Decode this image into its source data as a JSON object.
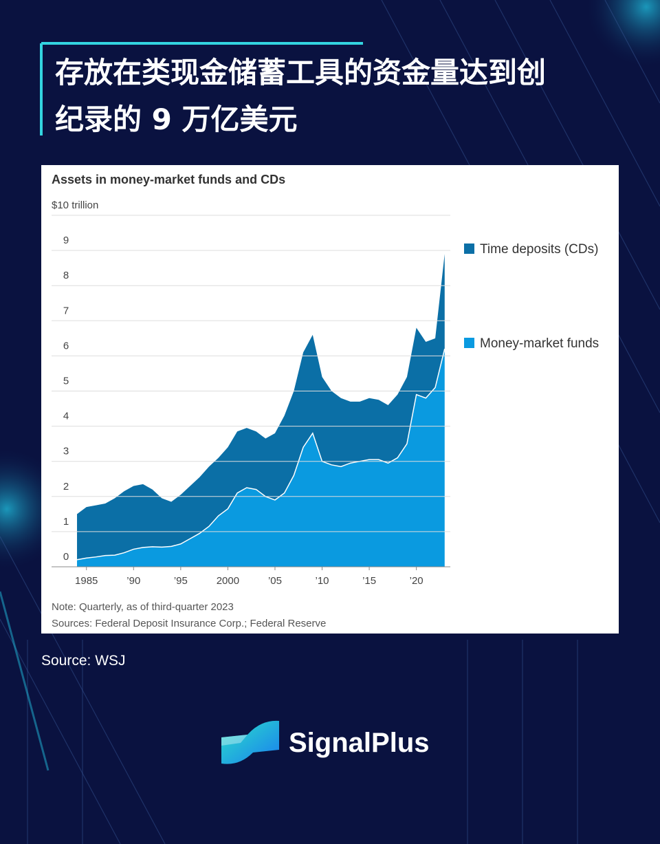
{
  "title": [
    "存放在类现金储蓄工具的资金量达到创",
    "纪录的 9 万亿美元"
  ],
  "chart_data": {
    "type": "stacked_area",
    "title": "Assets in money-market funds and CDs",
    "x": [
      1984,
      1985,
      1986,
      1987,
      1988,
      1989,
      1990,
      1991,
      1992,
      1993,
      1994,
      1995,
      1996,
      1997,
      1998,
      1999,
      2000,
      2001,
      2002,
      2003,
      2004,
      2005,
      2006,
      2007,
      2008,
      2009,
      2010,
      2011,
      2012,
      2013,
      2014,
      2015,
      2016,
      2017,
      2018,
      2019,
      2020,
      2021,
      2022,
      2023
    ],
    "series": [
      {
        "name": "Money-market funds",
        "color": "#0a9ae0",
        "values": [
          0.2,
          0.25,
          0.28,
          0.32,
          0.33,
          0.4,
          0.5,
          0.55,
          0.57,
          0.56,
          0.58,
          0.65,
          0.8,
          0.95,
          1.15,
          1.45,
          1.65,
          2.1,
          2.25,
          2.2,
          2.0,
          1.9,
          2.1,
          2.6,
          3.4,
          3.8,
          3.0,
          2.9,
          2.85,
          2.95,
          3.0,
          3.05,
          3.05,
          2.95,
          3.1,
          3.5,
          4.9,
          4.8,
          5.1,
          6.2
        ]
      },
      {
        "name": "Time deposits (CDs)",
        "color": "#0b6fa6",
        "values": [
          1.3,
          1.45,
          1.47,
          1.48,
          1.62,
          1.75,
          1.8,
          1.8,
          1.63,
          1.39,
          1.27,
          1.4,
          1.5,
          1.6,
          1.7,
          1.65,
          1.75,
          1.75,
          1.7,
          1.65,
          1.65,
          1.9,
          2.2,
          2.4,
          2.7,
          2.8,
          2.4,
          2.1,
          1.95,
          1.75,
          1.7,
          1.75,
          1.7,
          1.65,
          1.8,
          1.9,
          1.9,
          1.6,
          1.4,
          2.7
        ]
      }
    ],
    "xlim": [
      1981.3,
      2023.6
    ],
    "xticks": [
      {
        "value": 1985,
        "label": "1985"
      },
      {
        "value": 1990,
        "label": "’90"
      },
      {
        "value": 1995,
        "label": "’95"
      },
      {
        "value": 2000,
        "label": "2000"
      },
      {
        "value": 2005,
        "label": "’05"
      },
      {
        "value": 2010,
        "label": "’10"
      },
      {
        "value": 2015,
        "label": "’15"
      },
      {
        "value": 2020,
        "label": "’20"
      }
    ],
    "ylim": [
      0,
      10
    ],
    "yticks": [
      0,
      1,
      2,
      3,
      4,
      5,
      6,
      7,
      8,
      9,
      {
        "value": 10,
        "label": "$10 trillion"
      }
    ],
    "grid": true,
    "legend": "right",
    "note": "Note: Quarterly, as of third-quarter 2023",
    "sources": "Sources: Federal Deposit Insurance Corp.; Federal Reserve"
  },
  "source": "Source: WSJ",
  "brand": "SignalPlus"
}
